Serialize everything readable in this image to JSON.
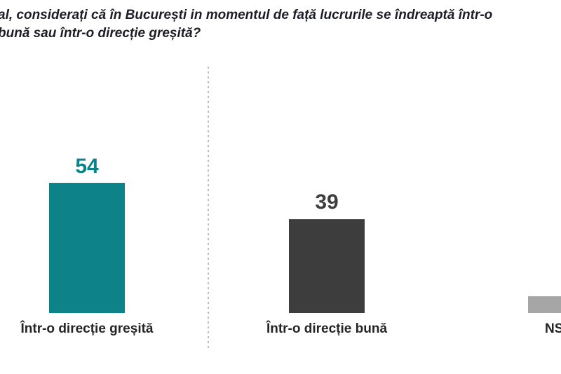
{
  "title": {
    "line1": "al, considerați că în București in momentul de față lucrurile se îndreaptă într-o",
    "line2": "bună sau într-o direcție greșită?"
  },
  "colors": {
    "teal": "#0e8289",
    "dark_gray": "#3d3d3d",
    "light_gray": "#a6a6a6",
    "title_text": "#1d1d27",
    "category_text": "#242424",
    "divider": "#bcbcbc",
    "background": "#ffffff"
  },
  "chart_data": {
    "type": "bar",
    "categories": [
      "Într-o direcție greșită",
      "Într-o direcție bună",
      "NS"
    ],
    "values": [
      54,
      39,
      7
    ],
    "series_colors": [
      "#0e8289",
      "#3d3d3d",
      "#a6a6a6"
    ],
    "value_labels_visible": [
      true,
      true,
      false
    ],
    "title": "al, considerați că în București in momentul de față lucrurile se îndreaptă într-o bună sau într-o direcție greșită?",
    "xlabel": "",
    "ylabel": "",
    "ylim": [
      0,
      60
    ],
    "grid": false,
    "axes_visible": false,
    "legend": "none",
    "layout_hint": "first bar separated from the others by a vertical dotted divider; third bar and its NS label are clipped by the right edge of the image"
  }
}
